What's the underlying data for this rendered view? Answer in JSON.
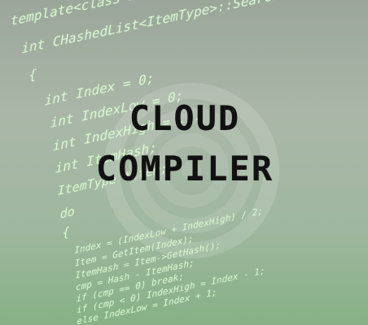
{
  "title": {
    "line1": "CLOUD",
    "line2": "COMPILER"
  },
  "code_lines": [
    "template<class ItemType>",
    "int CHashedList<ItemType>::Search(int &Hash, int &cmp)",
    "{",
    "int Index = 0;",
    "int IndexLow = 0;",
    "int IndexHigh = ...",
    "int ItemHash;",
    "ItemType *Item;",
    "do",
    "{",
    "Index = (IndexLow + IndexHigh) / 2;",
    "Item = GetItem(Index);",
    "ItemHash = Item->GetHash();",
    "cmp = Hash - ItemHash;",
    "if (cmp == 0) break;",
    "if (cmp < 0) IndexHigh = Index - 1;",
    "else IndexLow = Index + 1;"
  ]
}
